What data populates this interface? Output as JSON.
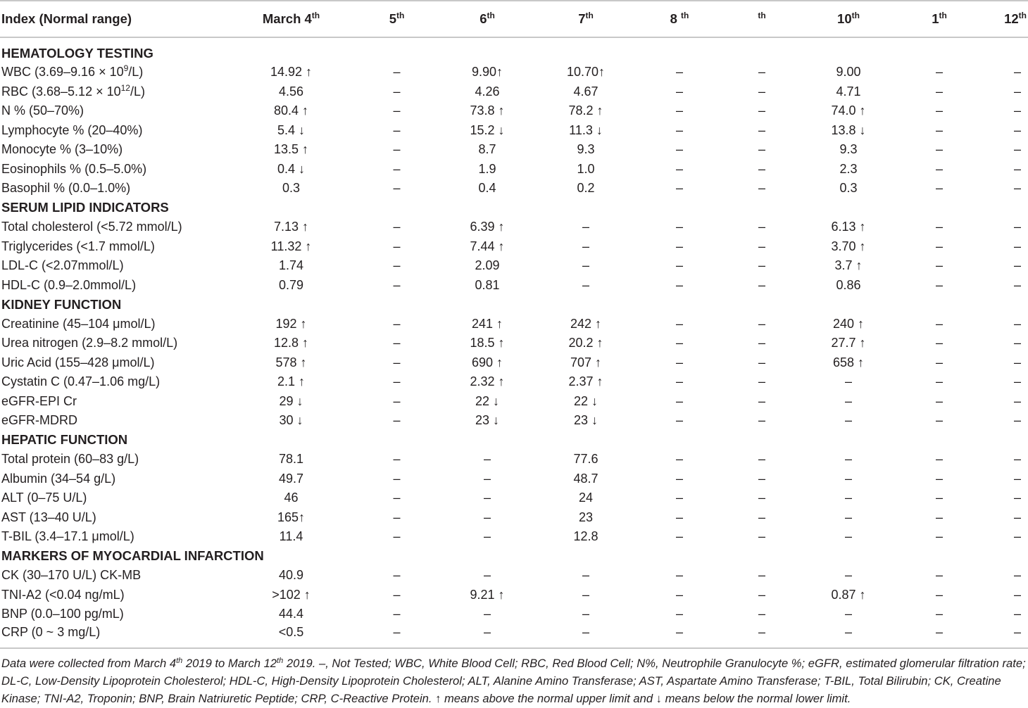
{
  "table": {
    "headers": [
      {
        "text": "Index (Normal range)",
        "sup": ""
      },
      {
        "text": "March 4",
        "sup": "th"
      },
      {
        "text": "5",
        "sup": "th"
      },
      {
        "text": "6",
        "sup": "th"
      },
      {
        "text": "7",
        "sup": "th"
      },
      {
        "text": "8 ",
        "sup": "th"
      },
      {
        "text": "",
        "sup": "th"
      },
      {
        "text": "10",
        "sup": "th"
      },
      {
        "text": "1",
        "sup": "th"
      },
      {
        "text": "12",
        "sup": "th"
      }
    ],
    "sections": [
      {
        "title": "HEMATOLOGY TESTING",
        "rows": [
          {
            "label": "WBC (3.69–9.16 × 10",
            "label_sup": "9",
            "label_tail": "/L)",
            "values": [
              "14.92 ↑",
              "–",
              "9.90↑",
              "10.70↑",
              "–",
              "–",
              "9.00",
              "–",
              "–"
            ]
          },
          {
            "label": "RBC (3.68–5.12 × 10",
            "label_sup": "12",
            "label_tail": "/L)",
            "values": [
              "4.56",
              "–",
              "4.26",
              "4.67",
              "–",
              "–",
              "4.71",
              "–",
              "–"
            ]
          },
          {
            "label": "N % (50–70%)",
            "values": [
              "80.4 ↑",
              "–",
              "73.8 ↑",
              "78.2 ↑",
              "–",
              "–",
              "74.0 ↑",
              "–",
              "–"
            ]
          },
          {
            "label": "Lymphocyte % (20–40%)",
            "values": [
              "5.4 ↓",
              "–",
              "15.2 ↓",
              "11.3 ↓",
              "–",
              "–",
              "13.8 ↓",
              "–",
              "–"
            ]
          },
          {
            "label": "Monocyte % (3–10%)",
            "values": [
              "13.5 ↑",
              "–",
              "8.7",
              "9.3",
              "–",
              "–",
              "9.3",
              "–",
              "–"
            ]
          },
          {
            "label": "Eosinophils % (0.5–5.0%)",
            "values": [
              "0.4 ↓",
              "–",
              "1.9",
              "1.0",
              "–",
              "–",
              "2.3",
              "–",
              "–"
            ]
          },
          {
            "label": "Basophil % (0.0–1.0%)",
            "values": [
              "0.3",
              "–",
              "0.4",
              "0.2",
              "–",
              "–",
              "0.3",
              "–",
              "–"
            ]
          }
        ]
      },
      {
        "title": "SERUM LIPID INDICATORS",
        "rows": [
          {
            "label": "Total cholesterol (<5.72 mmol/L)",
            "values": [
              "7.13 ↑",
              "–",
              "6.39 ↑",
              "–",
              "–",
              "–",
              "6.13 ↑",
              "–",
              "–"
            ]
          },
          {
            "label": "Triglycerides (<1.7 mmol/L)",
            "values": [
              "11.32 ↑",
              "–",
              "7.44 ↑",
              "–",
              "–",
              "–",
              "3.70 ↑",
              "–",
              "–"
            ]
          },
          {
            "label": "LDL-C (<2.07mmol/L)",
            "values": [
              "1.74",
              "–",
              "2.09",
              "–",
              "–",
              "–",
              "3.7 ↑",
              "–",
              "–"
            ]
          },
          {
            "label": "HDL-C (0.9–2.0mmol/L)",
            "values": [
              "0.79",
              "–",
              "0.81",
              "–",
              "–",
              "–",
              "0.86",
              "–",
              "–"
            ]
          }
        ]
      },
      {
        "title": "KIDNEY FUNCTION",
        "rows": [
          {
            "label": "Creatinine (45–104 μmol/L)",
            "values": [
              "192 ↑",
              "–",
              "241 ↑",
              "242 ↑",
              "–",
              "–",
              "240 ↑",
              "–",
              "–"
            ]
          },
          {
            "label": "Urea nitrogen (2.9–8.2 mmol/L)",
            "values": [
              "12.8 ↑",
              "–",
              "18.5 ↑",
              "20.2 ↑",
              "–",
              "–",
              "27.7 ↑",
              "–",
              "–"
            ]
          },
          {
            "label": "Uric Acid (155–428 μmol/L)",
            "values": [
              "578 ↑",
              "–",
              "690 ↑",
              "707 ↑",
              "–",
              "–",
              "658 ↑",
              "–",
              "–"
            ]
          },
          {
            "label": "Cystatin C (0.47–1.06 mg/L)",
            "values": [
              "2.1 ↑",
              "–",
              "2.32 ↑",
              "2.37 ↑",
              "–",
              "–",
              "–",
              "–",
              "–"
            ]
          },
          {
            "label": "eGFR-EPI Cr",
            "values": [
              "29 ↓",
              "–",
              "22 ↓",
              "22 ↓",
              "–",
              "–",
              "–",
              "–",
              "–"
            ]
          },
          {
            "label": "eGFR-MDRD",
            "values": [
              "30 ↓",
              "–",
              "23 ↓",
              "23 ↓",
              "–",
              "–",
              "–",
              "–",
              "–"
            ]
          }
        ]
      },
      {
        "title": "HEPATIC FUNCTION",
        "rows": [
          {
            "label": "Total protein (60–83 g/L)",
            "values": [
              "78.1",
              "–",
              "–",
              "77.6",
              "–",
              "–",
              "–",
              "–",
              "–"
            ]
          },
          {
            "label": "Albumin (34–54 g/L)",
            "values": [
              "49.7",
              "–",
              "–",
              "48.7",
              "–",
              "–",
              "–",
              "–",
              "–"
            ]
          },
          {
            "label": "ALT (0–75 U/L)",
            "values": [
              "46",
              "–",
              "–",
              "24",
              "–",
              "–",
              "–",
              "–",
              "–"
            ]
          },
          {
            "label": "AST (13–40 U/L)",
            "values": [
              "165↑",
              "–",
              "–",
              "23",
              "–",
              "–",
              "–",
              "–",
              "–"
            ]
          },
          {
            "label": "T-BIL (3.4–17.1 μmol/L)",
            "values": [
              "11.4",
              "–",
              "–",
              "12.8",
              "–",
              "–",
              "–",
              "–",
              "–"
            ]
          }
        ]
      },
      {
        "title": "MARKERS OF MYOCARDIAL INFARCTION",
        "rows": [
          {
            "label": "CK (30–170 U/L) CK-MB",
            "values": [
              "40.9",
              "–",
              "–",
              "–",
              "–",
              "–",
              "–",
              "–",
              "–"
            ]
          },
          {
            "label": "TNI-A2 (<0.04 ng/mL)",
            "values": [
              ">102 ↑",
              "–",
              "9.21 ↑",
              "–",
              "–",
              "–",
              "0.87 ↑",
              "–",
              "–"
            ]
          },
          {
            "label": "BNP (0.0–100 pg/mL)",
            "values": [
              "44.4",
              "–",
              "–",
              "–",
              "–",
              "–",
              "–",
              "–",
              "–"
            ]
          },
          {
            "label": "CRP (0 ~ 3 mg/L)",
            "values": [
              "<0.5",
              "–",
              "–",
              "–",
              "–",
              "–",
              "–",
              "–",
              "–"
            ]
          }
        ]
      }
    ]
  },
  "footnote": {
    "part1": "Data were collected from March 4",
    "sup1": "th",
    "part2": " 2019 to March 12",
    "sup2": "th",
    "part3": " 2019. –, Not Tested; WBC, White Blood Cell; RBC, Red Blood Cell; N%, Neutrophile Granulocyte %; eGFR, estimated glomerular filtration rate; DL-C, Low-Density Lipoprotein Cholesterol; HDL-C, High-Density Lipoprotein Cholesterol; ALT, Alanine Amino Transferase; AST, Aspartate Amino Transferase; T-BIL, Total Bilirubin; CK, Creatine Kinase; TNI-A2, Troponin; BNP, Brain Natriuretic Peptide; CRP, C-Reactive Protein. ↑ means above the normal upper limit and ↓ means below the  normal lower limit."
  }
}
